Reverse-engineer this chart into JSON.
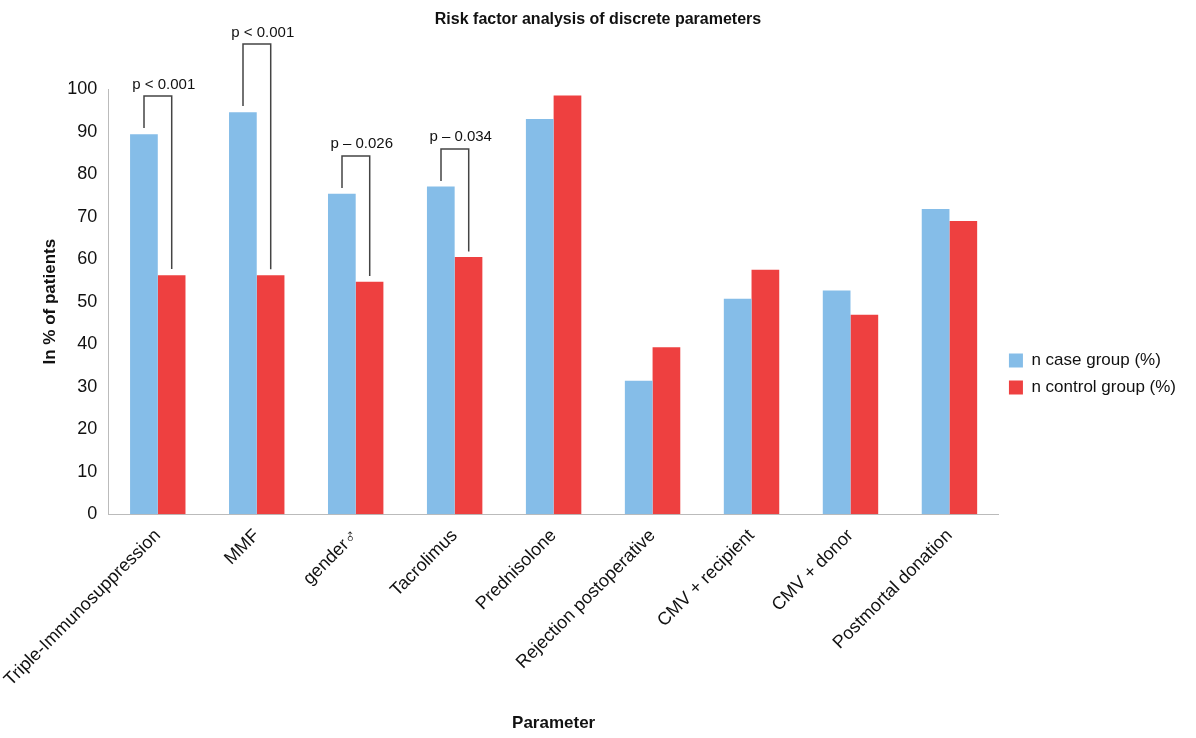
{
  "chart_data": {
    "type": "bar",
    "title": "Risk factor analysis of discrete parameters",
    "xlabel": "Parameter",
    "ylabel": "In % of patients",
    "categories": [
      "Triple-Immunosuppression",
      "MMF",
      "gender♂",
      "Tacrolimus",
      "Prednisolone",
      "Rejection postoperative",
      "CMV + recipient",
      "CMV + donor",
      "Postmortal donation"
    ],
    "series": [
      {
        "name": "n case group (%)",
        "color": "#85bde8",
        "values": [
          89.4,
          94.6,
          75.4,
          77.1,
          93.0,
          31.4,
          50.7,
          52.6,
          71.8
        ]
      },
      {
        "name": "n control group (%)",
        "color": "#ee4040",
        "values": [
          56.2,
          56.2,
          54.7,
          60.5,
          98.5,
          39.3,
          57.5,
          46.9,
          69.0
        ]
      }
    ],
    "ylim": [
      0,
      100
    ],
    "yticks": [
      0,
      10,
      20,
      30,
      40,
      50,
      60,
      70,
      80,
      90,
      100
    ],
    "grid": false,
    "legend": "right",
    "annotations": [
      "p < 0.001",
      "p < 0.001",
      "p – 0.026",
      "p – 0.034"
    ]
  }
}
